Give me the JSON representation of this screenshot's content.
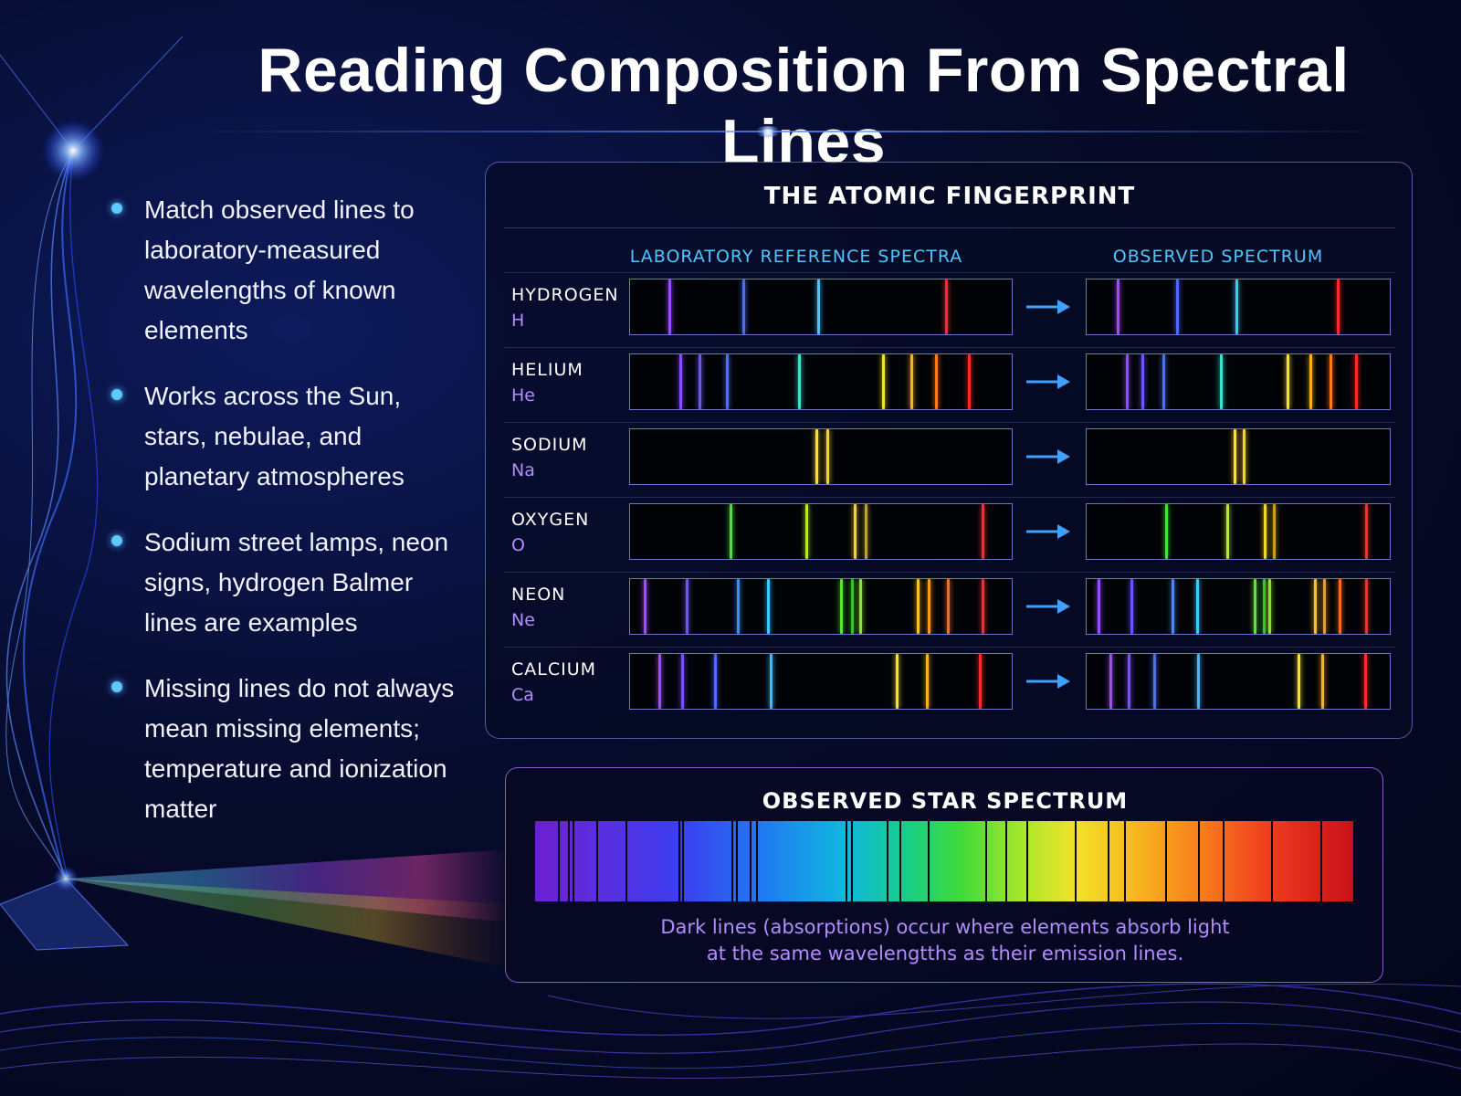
{
  "title": "Reading Composition From Spectral Lines",
  "bullets": [
    "Match observed lines to laboratory-measured wavelengths of known elements",
    "Works across the Sun, stars, nebulae, and planetary atmospheres",
    "Sodium street lamps, neon signs, hydrogen Balmer lines are examples",
    "Missing lines do not always mean missing elements; temperature and ionization matter"
  ],
  "panel": {
    "title": "THE ATOMIC FINGERPRINT",
    "lab_header": "LABORATORY REFERENCE SPECTRA",
    "obs_header": "OBSERVED SPECTRUM"
  },
  "elements": [
    {
      "name": "HYDROGEN",
      "symbol": "H",
      "lines": [
        {
          "pos": 0.1,
          "color": "#9b4dff"
        },
        {
          "pos": 0.295,
          "color": "#4f6bff"
        },
        {
          "pos": 0.49,
          "color": "#3fc8ff"
        },
        {
          "pos": 0.825,
          "color": "#ff2a2a"
        }
      ]
    },
    {
      "name": "HELIUM",
      "symbol": "He",
      "lines": [
        {
          "pos": 0.13,
          "color": "#8a4dff"
        },
        {
          "pos": 0.18,
          "color": "#6a55ff"
        },
        {
          "pos": 0.25,
          "color": "#4f6bff"
        },
        {
          "pos": 0.44,
          "color": "#3fe0d0"
        },
        {
          "pos": 0.66,
          "color": "#f2e22a"
        },
        {
          "pos": 0.735,
          "color": "#f7b31e"
        },
        {
          "pos": 0.8,
          "color": "#ff7a1c"
        },
        {
          "pos": 0.885,
          "color": "#ff2a2a"
        }
      ]
    },
    {
      "name": "SODIUM",
      "symbol": "Na",
      "lines": [
        {
          "pos": 0.485,
          "color": "#ffe02a"
        },
        {
          "pos": 0.515,
          "color": "#ffd01e"
        }
      ]
    },
    {
      "name": "OXYGEN",
      "symbol": "O",
      "lines": [
        {
          "pos": 0.26,
          "color": "#44e23a"
        },
        {
          "pos": 0.46,
          "color": "#b8ea2a"
        },
        {
          "pos": 0.585,
          "color": "#f2d42a"
        },
        {
          "pos": 0.615,
          "color": "#c4a01e"
        },
        {
          "pos": 0.92,
          "color": "#ff2a2a"
        }
      ]
    },
    {
      "name": "NEON",
      "symbol": "Ne",
      "lines": [
        {
          "pos": 0.035,
          "color": "#9b4dff"
        },
        {
          "pos": 0.145,
          "color": "#6a55ff"
        },
        {
          "pos": 0.28,
          "color": "#3f8cff"
        },
        {
          "pos": 0.36,
          "color": "#3fc8ff"
        },
        {
          "pos": 0.55,
          "color": "#5ee23a"
        },
        {
          "pos": 0.58,
          "color": "#3fbf2a"
        },
        {
          "pos": 0.6,
          "color": "#8ee22a"
        },
        {
          "pos": 0.75,
          "color": "#f7c31e"
        },
        {
          "pos": 0.78,
          "color": "#f79a1c"
        },
        {
          "pos": 0.83,
          "color": "#ff6a1c"
        },
        {
          "pos": 0.92,
          "color": "#ff2a2a"
        }
      ]
    },
    {
      "name": "CALCIUM",
      "symbol": "Ca",
      "lines": [
        {
          "pos": 0.075,
          "color": "#9b4dff"
        },
        {
          "pos": 0.135,
          "color": "#7a4dff"
        },
        {
          "pos": 0.22,
          "color": "#4f6bff"
        },
        {
          "pos": 0.365,
          "color": "#3fb8ff"
        },
        {
          "pos": 0.695,
          "color": "#f2e22a"
        },
        {
          "pos": 0.775,
          "color": "#f7b31e"
        },
        {
          "pos": 0.915,
          "color": "#ff2a2a"
        }
      ]
    }
  ],
  "star": {
    "title": "OBSERVED STAR SPECTRUM",
    "caption_line1": "Dark lines (absorptions) occur where elements absorb light",
    "caption_line2": "at the same wavelengtths as their emission lines.",
    "absorption_lines": [
      0.028,
      0.04,
      0.046,
      0.075,
      0.11,
      0.175,
      0.18,
      0.24,
      0.245,
      0.262,
      0.27,
      0.38,
      0.386,
      0.43,
      0.445,
      0.48,
      0.55,
      0.575,
      0.6,
      0.66,
      0.7,
      0.72,
      0.77,
      0.81,
      0.84,
      0.9,
      0.96
    ]
  }
}
